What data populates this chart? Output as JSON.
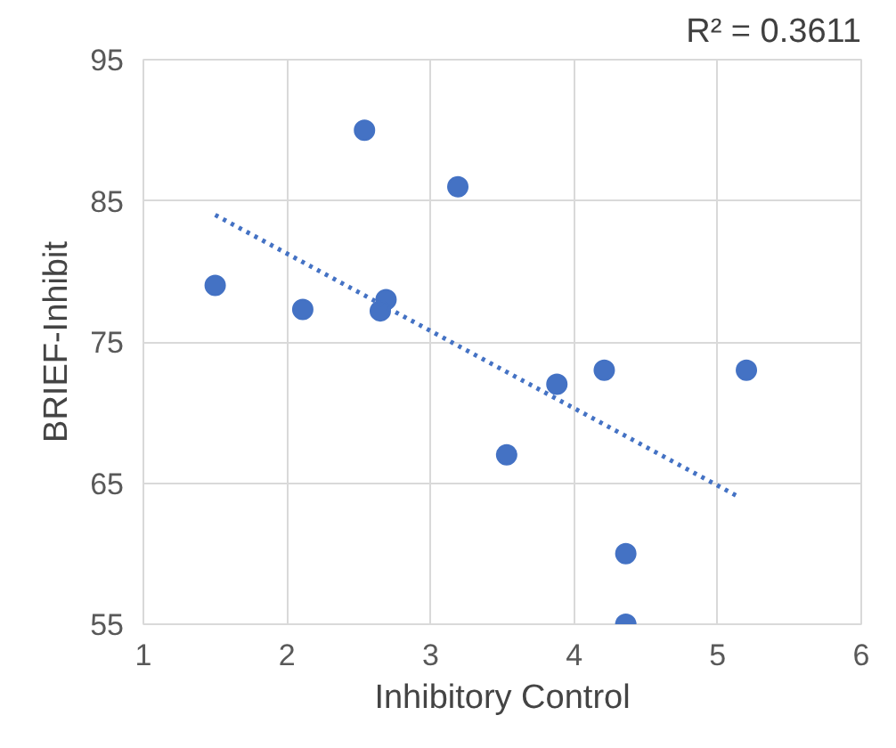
{
  "chart_data": {
    "type": "scatter",
    "xlabel": "Inhibitory Control",
    "ylabel": "BRIEF-Inhibit",
    "annotations": [
      "R² = 0.3611"
    ],
    "xlim": [
      1,
      6
    ],
    "xticks": [
      1,
      2,
      3,
      4,
      5,
      6
    ],
    "ylim": [
      55,
      95
    ],
    "yticks": [
      55,
      65,
      75,
      85,
      95
    ],
    "grid": true,
    "series": [
      {
        "marker": "circle",
        "color": "#4472c4",
        "x": [
          1.5,
          2.11,
          2.54,
          3.19,
          2.69,
          2.65,
          3.88,
          3.53,
          4.21,
          5.2,
          4.36,
          4.36
        ],
        "values": [
          79,
          77.3,
          90,
          86,
          78,
          77.2,
          72,
          67,
          73,
          73,
          60,
          55
        ]
      },
      {
        "type": "line",
        "line_style": "dotted",
        "marker": "none",
        "color": "#4472c4",
        "x": [
          1.5,
          5.15
        ],
        "values": [
          84,
          64
        ]
      }
    ]
  }
}
